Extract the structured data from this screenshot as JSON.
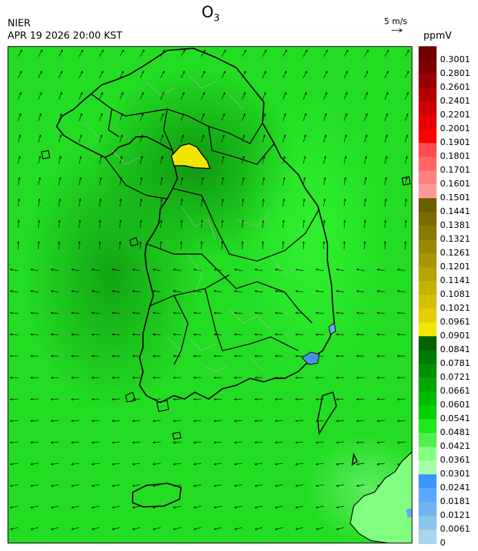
{
  "header": {
    "agency": "NIER",
    "datetime": "APR 19 2026 20:00 KST",
    "species_main": "O",
    "species_sub": "3",
    "wind_scale_label": "5 m/s",
    "unit": "ppmV"
  },
  "colors": {
    "background_field": "#22dd22",
    "country_outline": "#000000",
    "district_outline": "#9a9a9a",
    "yellow_hotspot": "#f2e600",
    "blue_patch": "#4a90e2"
  },
  "colorbar": {
    "labels": [
      "0.3001",
      "0.2801",
      "0.2601",
      "0.2401",
      "0.2201",
      "0.2001",
      "0.1901",
      "0.1801",
      "0.1701",
      "0.1601",
      "0.1501",
      "0.1441",
      "0.1381",
      "0.1321",
      "0.1261",
      "0.1201",
      "0.1141",
      "0.1081",
      "0.1021",
      "0.0961",
      "0.0901",
      "0.0841",
      "0.0781",
      "0.0721",
      "0.0661",
      "0.0601",
      "0.0541",
      "0.0481",
      "0.0421",
      "0.0361",
      "0.0301",
      "0.0241",
      "0.0181",
      "0.0121",
      "0.0061",
      "0"
    ],
    "colors": [
      "#6e0000",
      "#800000",
      "#990000",
      "#b30000",
      "#cc0000",
      "#e60000",
      "#ff0000",
      "#ff4d4d",
      "#ff6666",
      "#ff8080",
      "#ff9999",
      "#6b5e00",
      "#7a6c00",
      "#897a00",
      "#988800",
      "#a79600",
      "#b6a400",
      "#c5b200",
      "#d4c000",
      "#e3ce00",
      "#f2e600",
      "#006400",
      "#007a00",
      "#009000",
      "#00a600",
      "#00bc00",
      "#00d200",
      "#1ee81e",
      "#50f050",
      "#80ff80",
      "#a8ffa8",
      "#3a98ff",
      "#5aa8ff",
      "#6fb4f0",
      "#8ac4ea",
      "#a8d4ec"
    ]
  }
}
